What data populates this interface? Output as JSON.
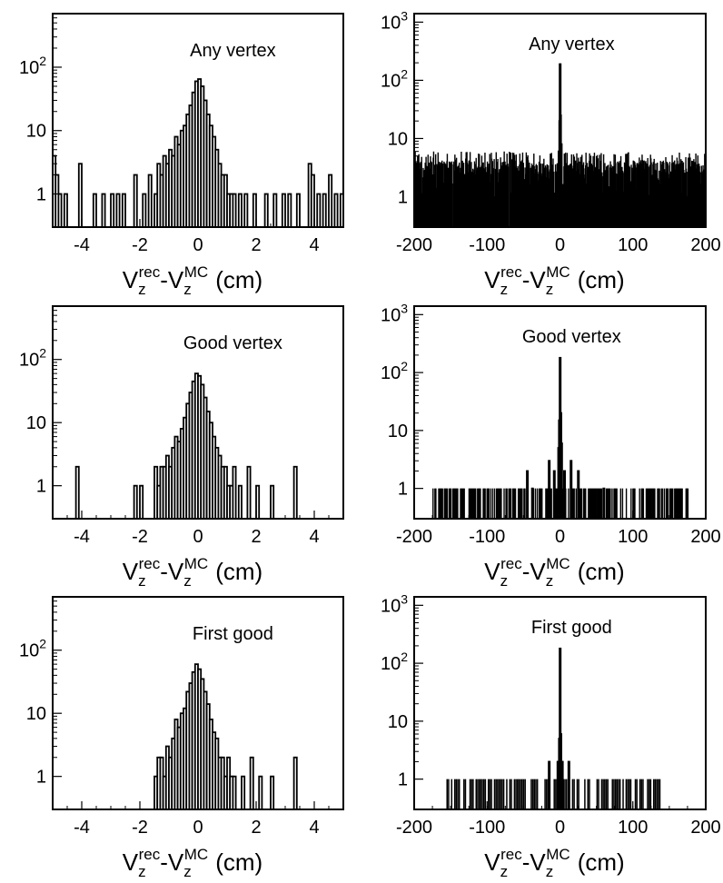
{
  "figure": {
    "xlabel": {
      "main": "V",
      "sub": "z",
      "sup1": "rec",
      "sep": "-",
      "sup2": "MC",
      "unit": "(cm)"
    }
  },
  "chart_data": [
    {
      "type": "bar",
      "title": "Any vertex",
      "xlim": [
        -5,
        5
      ],
      "xticks": [
        -4,
        -2,
        0,
        2,
        4
      ],
      "ylog": true,
      "ylim": [
        0.3,
        700
      ],
      "yticks": [
        1,
        10,
        100
      ],
      "ytick_labels": [
        {
          "base": "1",
          "exp": ""
        },
        {
          "base": "10",
          "exp": ""
        },
        {
          "base": "10",
          "exp": "2"
        }
      ],
      "x": [
        -4.95,
        -4.85,
        -4.75,
        -4.55,
        -4.05,
        -3.55,
        -3.25,
        -2.95,
        -2.75,
        -2.55,
        -2.15,
        -1.85,
        -1.65,
        -1.45,
        -1.35,
        -1.25,
        -1.15,
        -1.05,
        -0.95,
        -0.85,
        -0.75,
        -0.65,
        -0.55,
        -0.45,
        -0.35,
        -0.25,
        -0.15,
        -0.05,
        0.05,
        0.15,
        0.25,
        0.35,
        0.45,
        0.55,
        0.65,
        0.75,
        0.85,
        0.95,
        1.05,
        1.15,
        1.25,
        1.45,
        1.65,
        1.95,
        2.35,
        2.65,
        2.95,
        3.15,
        3.45,
        3.85,
        3.95,
        4.15,
        4.35,
        4.55,
        4.75,
        4.95
      ],
      "values": [
        4,
        2,
        1,
        1,
        3,
        1,
        1,
        1,
        1,
        1,
        2,
        1,
        2,
        1,
        3,
        2,
        4,
        3,
        5,
        4,
        8,
        6,
        10,
        12,
        18,
        25,
        40,
        60,
        65,
        50,
        30,
        18,
        12,
        8,
        5,
        3,
        2,
        2,
        1,
        1,
        1,
        1,
        1,
        1,
        1,
        1,
        1,
        1,
        1,
        3,
        2,
        1,
        1,
        2,
        1,
        1
      ]
    },
    {
      "type": "bar",
      "title": "Any vertex",
      "xlim": [
        -200,
        200
      ],
      "xticks": [
        -200,
        -100,
        0,
        100,
        200
      ],
      "ylog": true,
      "ylim": [
        0.3,
        1400
      ],
      "yticks": [
        1,
        10,
        100,
        1000
      ],
      "ytick_labels": [
        {
          "base": "1",
          "exp": ""
        },
        {
          "base": "10",
          "exp": ""
        },
        {
          "base": "10",
          "exp": "2"
        },
        {
          "base": "10",
          "exp": "3"
        }
      ],
      "noise": {
        "xmin": -200,
        "xmax": 200,
        "step": 0.55,
        "min": 1,
        "max": 6,
        "mean_level": 3,
        "gaps": [
          -148,
          -122,
          -71,
          -8,
          37,
          55,
          121,
          168
        ]
      },
      "x": [
        -1.5,
        -0.5,
        0,
        0.5,
        1.5
      ],
      "values": [
        6,
        20,
        190,
        25,
        8
      ]
    },
    {
      "type": "bar",
      "title": "Good vertex",
      "xlim": [
        -5,
        5
      ],
      "xticks": [
        -4,
        -2,
        0,
        2,
        4
      ],
      "ylog": true,
      "ylim": [
        0.3,
        700
      ],
      "yticks": [
        1,
        10,
        100
      ],
      "ytick_labels": [
        {
          "base": "1",
          "exp": ""
        },
        {
          "base": "10",
          "exp": ""
        },
        {
          "base": "10",
          "exp": "2"
        }
      ],
      "x": [
        -4.15,
        -2.15,
        -1.95,
        -1.45,
        -1.35,
        -1.25,
        -1.15,
        -1.05,
        -0.95,
        -0.85,
        -0.75,
        -0.65,
        -0.55,
        -0.45,
        -0.35,
        -0.25,
        -0.15,
        -0.05,
        0.05,
        0.15,
        0.25,
        0.35,
        0.45,
        0.55,
        0.65,
        0.75,
        0.85,
        0.95,
        1.05,
        1.15,
        1.25,
        1.45,
        1.75,
        2.05,
        2.55,
        3.35
      ],
      "values": [
        2,
        1,
        1,
        2,
        1,
        2,
        2,
        3,
        2,
        4,
        6,
        5,
        8,
        12,
        20,
        30,
        45,
        60,
        55,
        40,
        25,
        15,
        10,
        6,
        4,
        3,
        2,
        2,
        1,
        1,
        2,
        1,
        2,
        1,
        1,
        2
      ]
    },
    {
      "type": "bar",
      "title": "Good vertex",
      "xlim": [
        -200,
        200
      ],
      "xticks": [
        -200,
        -100,
        0,
        100,
        200
      ],
      "ylog": true,
      "ylim": [
        0.3,
        1400
      ],
      "yticks": [
        1,
        10,
        100,
        1000
      ],
      "ytick_labels": [
        {
          "base": "1",
          "exp": ""
        },
        {
          "base": "10",
          "exp": ""
        },
        {
          "base": "10",
          "exp": "2"
        },
        {
          "base": "10",
          "exp": "3"
        }
      ],
      "noise": {
        "xmin": -175,
        "xmax": 175,
        "step": 1.3,
        "min": 1,
        "max": 1,
        "mean_level": 1,
        "gaps": []
      },
      "x": [
        -45,
        -38,
        -15,
        -8,
        -2,
        -1,
        0,
        1,
        2,
        6,
        15,
        25,
        60
      ],
      "values": [
        2,
        1,
        3,
        2,
        5,
        15,
        180,
        20,
        6,
        2,
        3,
        2,
        1
      ]
    },
    {
      "type": "bar",
      "title": "First good",
      "xlim": [
        -5,
        5
      ],
      "xticks": [
        -4,
        -2,
        0,
        2,
        4
      ],
      "ylog": true,
      "ylim": [
        0.3,
        700
      ],
      "yticks": [
        1,
        10,
        100
      ],
      "ytick_labels": [
        {
          "base": "1",
          "exp": ""
        },
        {
          "base": "10",
          "exp": ""
        },
        {
          "base": "10",
          "exp": "2"
        }
      ],
      "x": [
        -1.45,
        -1.35,
        -1.25,
        -1.15,
        -1.05,
        -0.95,
        -0.85,
        -0.75,
        -0.65,
        -0.55,
        -0.45,
        -0.35,
        -0.25,
        -0.15,
        -0.05,
        0.05,
        0.15,
        0.25,
        0.35,
        0.45,
        0.55,
        0.65,
        0.75,
        0.85,
        0.95,
        1.05,
        1.15,
        1.25,
        1.55,
        1.85,
        2.15,
        2.55,
        3.35
      ],
      "values": [
        1,
        2,
        2,
        1,
        3,
        2,
        4,
        8,
        6,
        10,
        12,
        22,
        30,
        45,
        60,
        50,
        35,
        22,
        14,
        8,
        5,
        4,
        2,
        2,
        1,
        2,
        1,
        1,
        1,
        2,
        1,
        1,
        2
      ]
    },
    {
      "type": "bar",
      "title": "First good",
      "xlim": [
        -200,
        200
      ],
      "xticks": [
        -200,
        -100,
        0,
        100,
        200
      ],
      "ylog": true,
      "ylim": [
        0.3,
        1400
      ],
      "yticks": [
        1,
        10,
        100,
        1000
      ],
      "ytick_labels": [
        {
          "base": "1",
          "exp": ""
        },
        {
          "base": "10",
          "exp": ""
        },
        {
          "base": "10",
          "exp": "2"
        },
        {
          "base": "10",
          "exp": "3"
        }
      ],
      "noise": {
        "xmin": -160,
        "xmax": 138,
        "step": 2.1,
        "min": 1,
        "max": 1,
        "mean_level": 1,
        "gaps": []
      },
      "x": [
        -15,
        -3,
        -1,
        0,
        1,
        3,
        12
      ],
      "values": [
        2,
        2,
        5,
        180,
        6,
        2,
        2
      ]
    }
  ]
}
